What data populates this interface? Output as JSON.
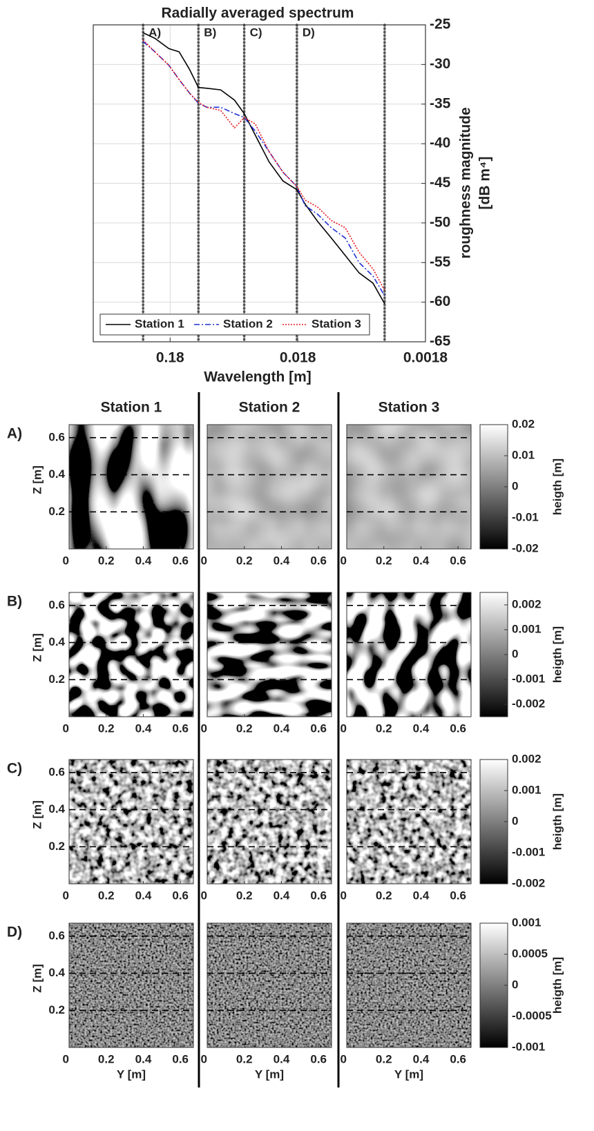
{
  "chart_data": {
    "type": "line",
    "title": "Radially averaged spectrum",
    "xlabel": "Wavelength [m]",
    "ylabel": [
      "roughness magnitude",
      "[dB m⁴]"
    ],
    "xscale": "log",
    "xlim": [
      0.72,
      0.0018
    ],
    "xticks": [
      0.18,
      0.018,
      0.0018
    ],
    "ylim": [
      -65,
      -25
    ],
    "yticks": [
      -65,
      -60,
      -55,
      -50,
      -45,
      -40,
      -35,
      -30,
      -25
    ],
    "yaxis_side": "right",
    "grid": true,
    "legend": "lower left",
    "vlines": [
      {
        "value": 0.293,
        "label": "A)"
      },
      {
        "value": 0.108,
        "label": "B)"
      },
      {
        "value": 0.0473,
        "label": "C)"
      },
      {
        "value": 0.0183,
        "label": "D)"
      },
      {
        "value": 0.00376
      }
    ],
    "x": [
      0.293,
      0.237,
      0.184,
      0.153,
      0.127,
      0.108,
      0.0929,
      0.0724,
      0.0564,
      0.0473,
      0.0388,
      0.0302,
      0.0235,
      0.0183,
      0.0158,
      0.0126,
      0.00983,
      0.00765,
      0.00596,
      0.00464,
      0.00376
    ],
    "series": [
      {
        "name": "Station 1",
        "color": "#000000",
        "style": "solid",
        "values": [
          -26.0,
          -26.7,
          -28.0,
          -28.4,
          -30.6,
          -32.9,
          -33.0,
          -33.2,
          -34.5,
          -36.2,
          -38.9,
          -42.3,
          -44.7,
          -45.8,
          -47.6,
          -49.8,
          -51.9,
          -54.1,
          -56.3,
          -57.6,
          -60.2
        ]
      },
      {
        "name": "Station 2",
        "color": "#1f2fd6",
        "style": "dashdot",
        "values": [
          -27.1,
          -28.4,
          -30.1,
          -31.9,
          -33.6,
          -34.9,
          -35.4,
          -35.4,
          -36.2,
          -36.7,
          -38.4,
          -41.0,
          -43.6,
          -45.4,
          -47.8,
          -48.9,
          -50.6,
          -51.9,
          -55.0,
          -56.7,
          -59.2
        ]
      },
      {
        "name": "Station 3",
        "color": "#e8141c",
        "style": "dotted",
        "values": [
          -26.9,
          -28.4,
          -30.1,
          -31.9,
          -33.6,
          -34.8,
          -35.4,
          -35.8,
          -38.0,
          -36.7,
          -37.5,
          -41.0,
          -43.6,
          -45.4,
          -47.1,
          -48.0,
          -49.7,
          -50.6,
          -53.7,
          -55.8,
          -58.5
        ]
      }
    ]
  },
  "panels": {
    "columns": [
      "Station 1",
      "Station 2",
      "Station 3"
    ],
    "xlabel": "Y [m]",
    "ylabel": "Z [m]",
    "xlim": [
      0,
      0.67
    ],
    "ylim": [
      0,
      0.67
    ],
    "xticks": [
      0,
      0.2,
      0.4,
      0.6
    ],
    "yticks": [
      0.2,
      0.4,
      0.6
    ],
    "rows": [
      {
        "label": "A)",
        "colorbar": {
          "label": "heigth [m]",
          "lim": [
            -0.02,
            0.02
          ],
          "ticks": [
            -0.02,
            -0.01,
            0,
            0.01,
            0.02
          ]
        }
      },
      {
        "label": "B)",
        "colorbar": {
          "label": "heigth [m]",
          "lim": [
            -0.0025,
            0.0025
          ],
          "ticks": [
            -0.002,
            -0.001,
            0,
            0.001,
            0.002
          ]
        }
      },
      {
        "label": "C)",
        "colorbar": {
          "label": "heigth [m]",
          "lim": [
            -0.002,
            0.002
          ],
          "ticks": [
            -0.002,
            -0.001,
            0,
            0.001,
            0.002
          ]
        }
      },
      {
        "label": "D)",
        "colorbar": {
          "label": "heigth [m]",
          "lim": [
            -0.001,
            0.001
          ],
          "ticks": [
            -0.001,
            -0.0005,
            0,
            0.0005,
            0.001
          ]
        }
      }
    ]
  }
}
